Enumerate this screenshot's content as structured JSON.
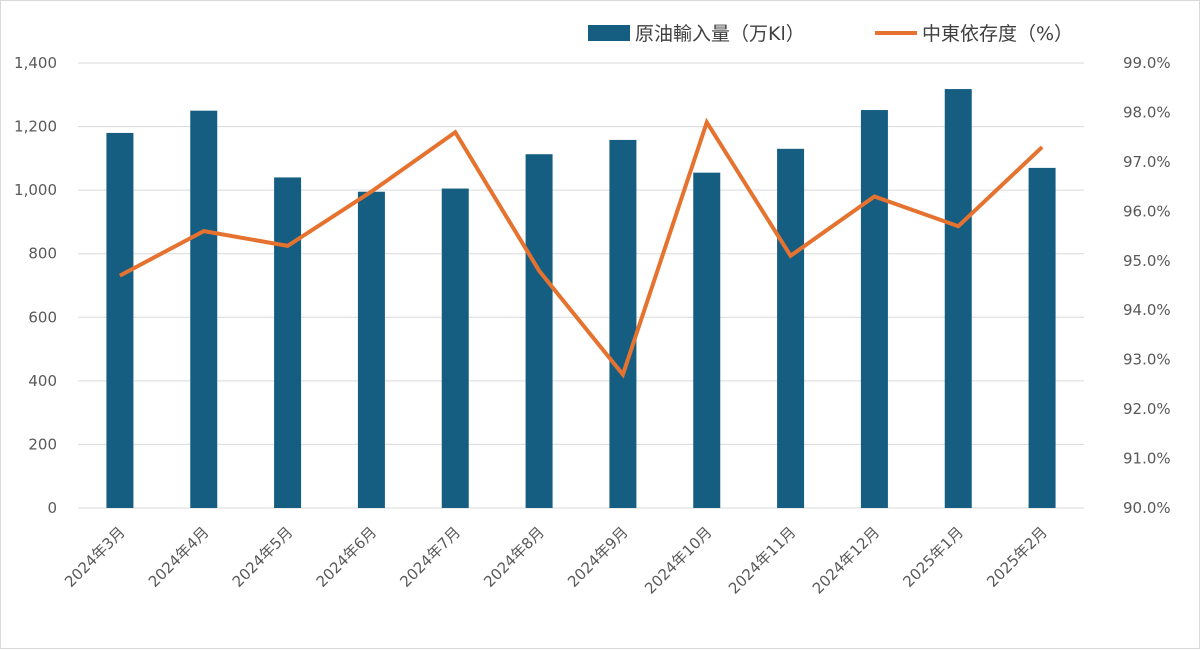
{
  "chart_data": {
    "type": "bar",
    "categories": [
      "2024年3月",
      "2024年4月",
      "2024年5月",
      "2024年6月",
      "2024年7月",
      "2024年8月",
      "2024年9月",
      "2024年10月",
      "2024年11月",
      "2024年12月",
      "2025年1月",
      "2025年2月"
    ],
    "series": [
      {
        "name": "原油輸入量（万Kl）",
        "type": "bar",
        "axis": "left",
        "color": "#155E82",
        "values": [
          1180,
          1250,
          1040,
          995,
          1005,
          1113,
          1158,
          1055,
          1130,
          1252,
          1318,
          1070
        ]
      },
      {
        "name": "中東依存度（%）",
        "type": "line",
        "axis": "right",
        "color": "#E5722F",
        "values": [
          94.7,
          95.6,
          95.3,
          96.4,
          97.6,
          94.8,
          92.7,
          97.8,
          95.1,
          96.3,
          95.7,
          97.3
        ]
      }
    ],
    "ylim": [
      0,
      1400
    ],
    "y_ticks": [
      "0",
      "200",
      "400",
      "600",
      "800",
      "1,000",
      "1,200",
      "1,400"
    ],
    "y2lim": [
      90,
      99
    ],
    "y2_ticks": [
      "90.0%",
      "91.0%",
      "92.0%",
      "93.0%",
      "94.0%",
      "95.0%",
      "96.0%",
      "97.0%",
      "98.0%",
      "99.0%"
    ],
    "grid": true,
    "legend_position": "top-right"
  }
}
